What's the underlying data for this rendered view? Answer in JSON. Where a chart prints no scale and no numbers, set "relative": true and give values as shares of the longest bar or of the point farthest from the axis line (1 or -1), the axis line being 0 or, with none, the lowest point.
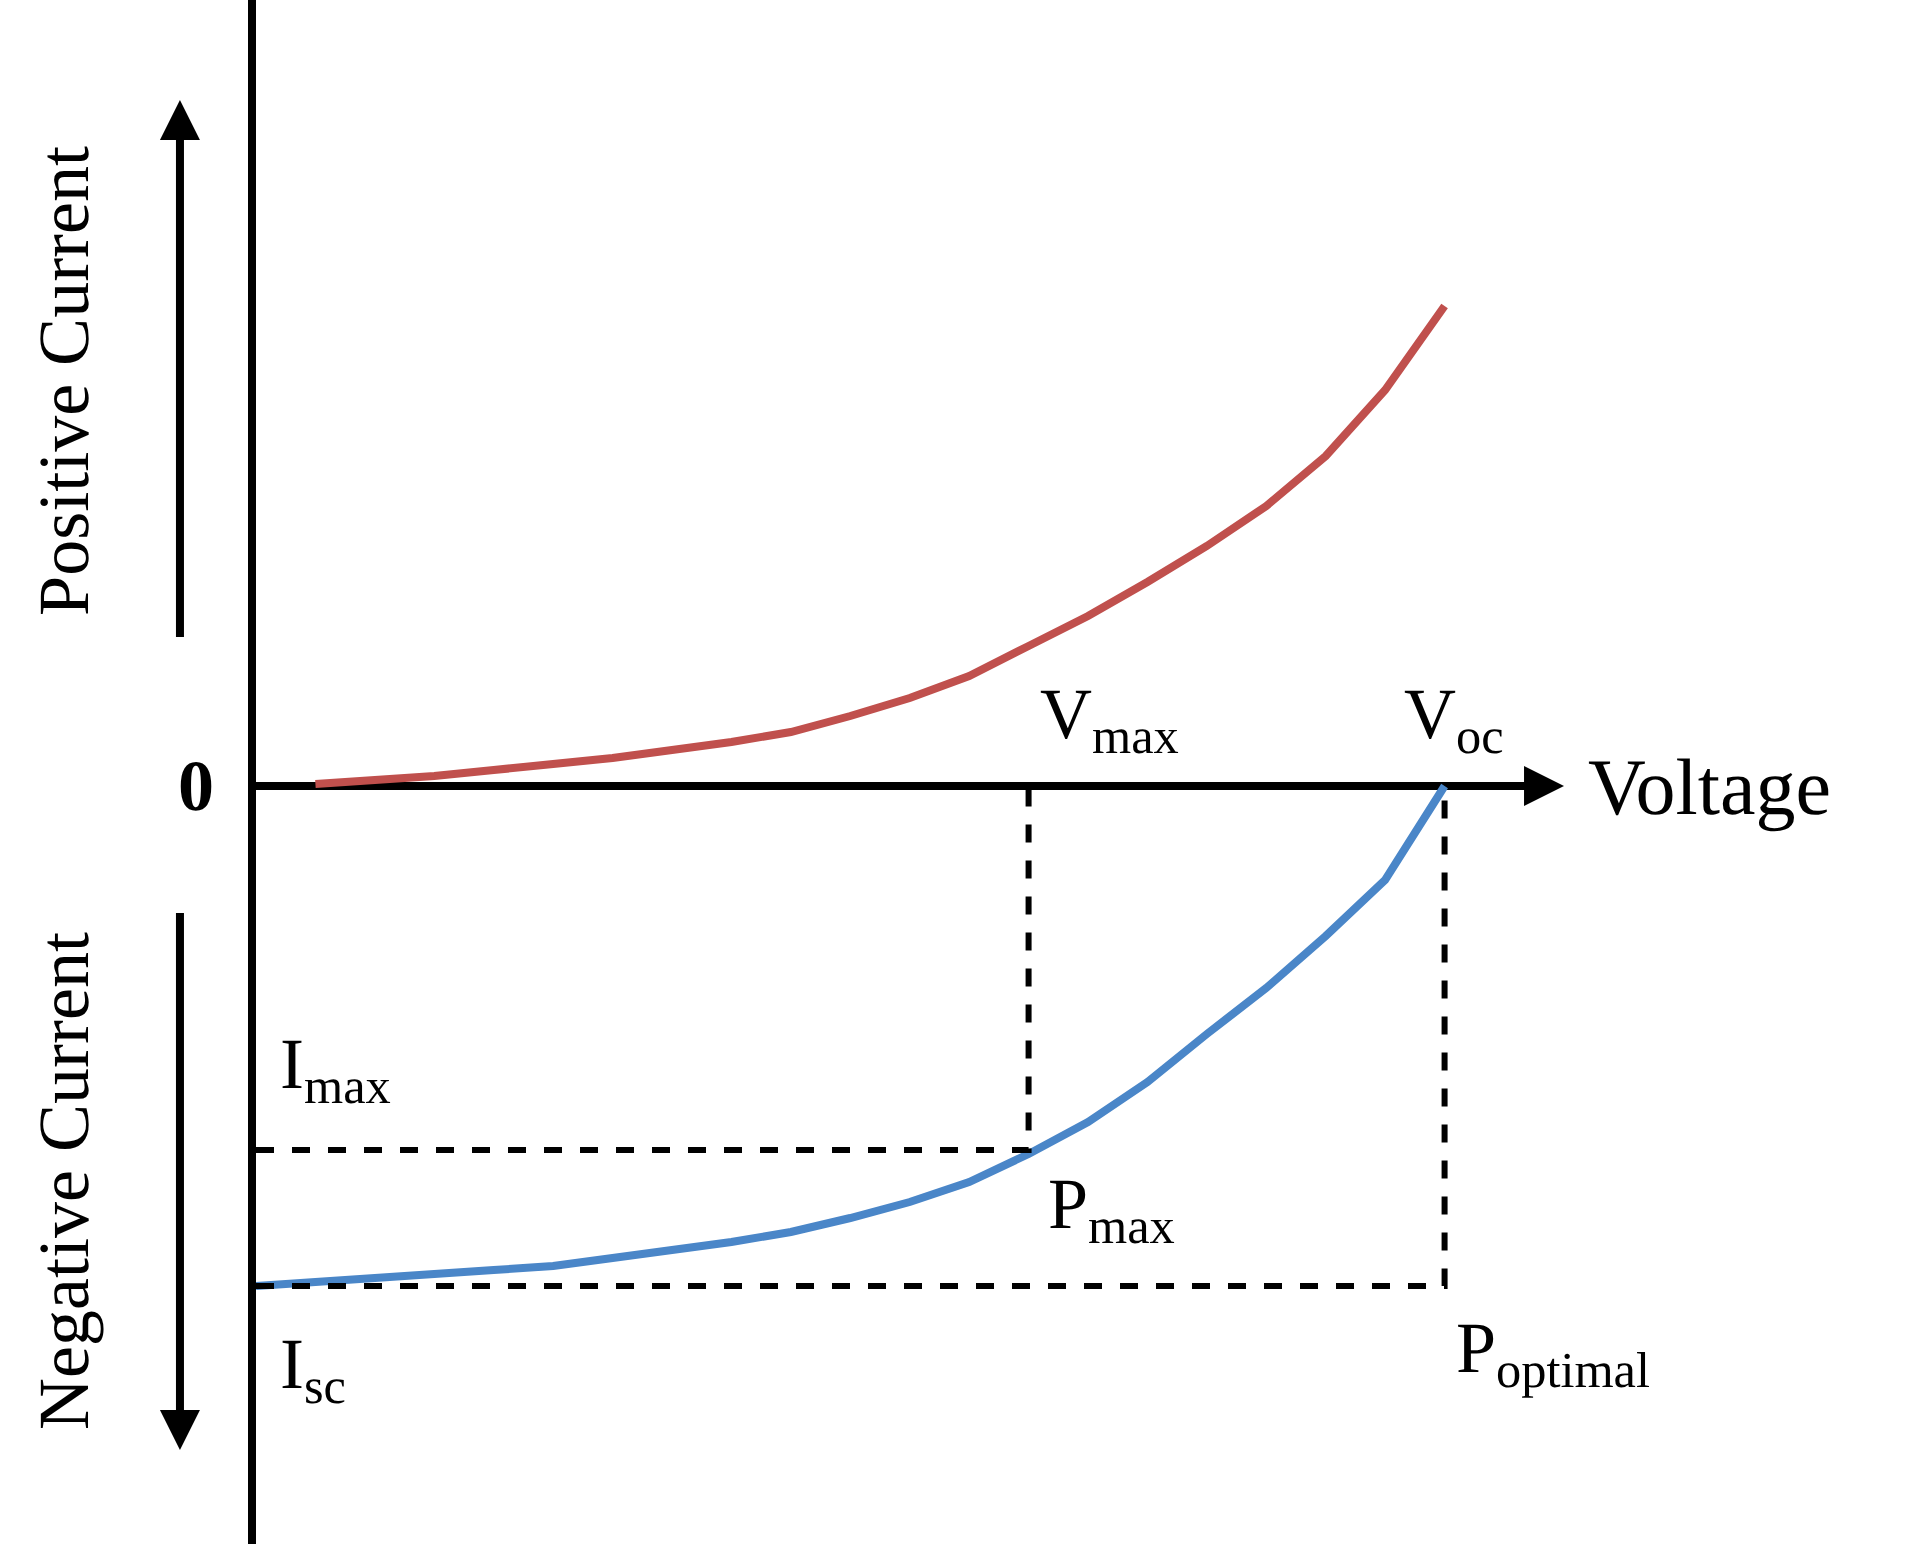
{
  "chart_data": {
    "type": "line",
    "relative": true,
    "xlabel": "Voltage",
    "line_style": "solid",
    "marker": "none",
    "categories": [
      null,
      null,
      null,
      null,
      null,
      null,
      null,
      null,
      null,
      null,
      null,
      null,
      null,
      null,
      null,
      null,
      null,
      null,
      null,
      null,
      null
    ],
    "series": [
      {
        "color": "#c0504d",
        "values": [
          null,
          0.004,
          0.012,
          0.02,
          0.032,
          0.044,
          0.056,
          0.072,
          0.088,
          0.108,
          0.14,
          0.176,
          0.22,
          0.28,
          0.34,
          0.408,
          0.48,
          0.56,
          0.66,
          0.792,
          0.96
        ]
      },
      {
        "color": "#4a86c8",
        "values": [
          -1,
          -0.992,
          -0.984,
          -0.976,
          -0.968,
          -0.96,
          -0.944,
          -0.928,
          -0.912,
          -0.892,
          -0.864,
          -0.832,
          -0.792,
          -0.736,
          -0.672,
          -0.592,
          -0.496,
          -0.404,
          -0.3,
          -0.188,
          0
        ]
      },
      {
        "type": "step",
        "color": "#000000",
        "line_style": "dashed",
        "values": [
          -0.728,
          -0.728,
          -0.728,
          -0.728,
          -0.728,
          -0.728,
          -0.728,
          -0.728,
          -0.728,
          -0.728,
          -0.728,
          -0.728,
          -0.728,
          0,
          null,
          null,
          null,
          null,
          null,
          null,
          null
        ]
      },
      {
        "type": "step",
        "color": "#000000",
        "line_style": "dashed",
        "values": [
          -1,
          -1,
          -1,
          -1,
          -1,
          -1,
          -1,
          -1,
          -1,
          -1,
          -1,
          -1,
          -1,
          -1,
          -1,
          -1,
          -1,
          -1,
          -1,
          -1,
          0
        ]
      }
    ],
    "annotations": [
      "Positive Current",
      "Negative Current",
      "0",
      "V$_{max}$",
      "V$_{oc}$",
      "I$_{max}$",
      "I$_{sc}$",
      "P$_{max}$",
      "P$_{optimal}$"
    ]
  }
}
